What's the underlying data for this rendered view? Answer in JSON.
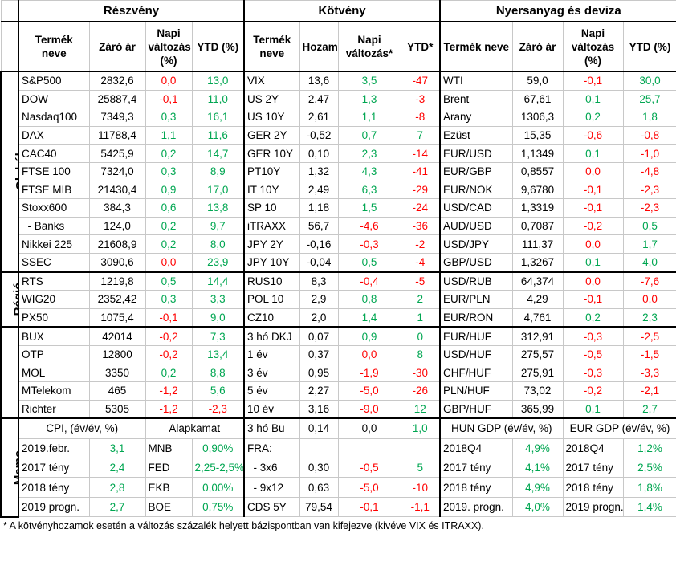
{
  "sections": [
    {
      "title": "Részvény",
      "headers": [
        "Termék neve",
        "Záró ár",
        "Napi változás (%)",
        "YTD (%)"
      ]
    },
    {
      "title": "Kötvény",
      "headers": [
        "Termék neve",
        "Hozam",
        "Napi változás*",
        "YTD*"
      ]
    },
    {
      "title": "Nyersanyag és deviza",
      "headers": [
        "Termék neve",
        "Záró ár",
        "Napi változás (%)",
        "YTD (%)"
      ]
    }
  ],
  "groups": [
    {
      "label": "Globál",
      "rows": [
        [
          "S&P500",
          "2832,6",
          "0,0",
          "13,0",
          "VIX",
          "13,6",
          "3,5",
          "-47",
          "WTI",
          "59,0",
          "-0,1",
          "30,0"
        ],
        [
          "DOW",
          "25887,4",
          "-0,1",
          "11,0",
          "US 2Y",
          "2,47",
          "1,3",
          "-3",
          "Brent",
          "67,61",
          "0,1",
          "25,7"
        ],
        [
          "Nasdaq100",
          "7349,3",
          "0,3",
          "16,1",
          "US 10Y",
          "2,61",
          "1,1",
          "-8",
          "Arany",
          "1306,3",
          "0,2",
          "1,8"
        ],
        [
          "DAX",
          "11788,4",
          "1,1",
          "11,6",
          "GER 2Y",
          "-0,52",
          "0,7",
          "7",
          "Ezüst",
          "15,35",
          "-0,6",
          "-0,8"
        ],
        [
          "CAC40",
          "5425,9",
          "0,2",
          "14,7",
          "GER 10Y",
          "0,10",
          "2,3",
          "-14",
          "EUR/USD",
          "1,1349",
          "0,1",
          "-1,0"
        ],
        [
          "FTSE 100",
          "7324,0",
          "0,3",
          "8,9",
          "PT10Y",
          "1,32",
          "4,3",
          "-41",
          "EUR/GBP",
          "0,8557",
          "0,0",
          "-4,8"
        ],
        [
          "FTSE MIB",
          "21430,4",
          "0,9",
          "17,0",
          "IT 10Y",
          "2,49",
          "6,3",
          "-29",
          "EUR/NOK",
          "9,6780",
          "-0,1",
          "-2,3"
        ],
        [
          "Stoxx600",
          "384,3",
          "0,6",
          "13,8",
          "SP 10",
          "1,18",
          "1,5",
          "-24",
          "USD/CAD",
          "1,3319",
          "-0,1",
          "-2,3"
        ],
        [
          "  - Banks",
          "124,0",
          "0,2",
          "9,7",
          "iTRAXX",
          "56,7",
          "-4,6",
          "-36",
          "AUD/USD",
          "0,7087",
          "-0,2",
          "0,5"
        ],
        [
          "Nikkei 225",
          "21608,9",
          "0,2",
          "8,0",
          "JPY 2Y",
          "-0,16",
          "-0,3",
          "-2",
          "USD/JPY",
          "111,37",
          "0,0",
          "1,7"
        ],
        [
          "SSEC",
          "3090,6",
          "0,0",
          "23,9",
          "JPY 10Y",
          "-0,04",
          "0,5",
          "-4",
          "GBP/USD",
          "1,3267",
          "0,1",
          "4,0"
        ]
      ]
    },
    {
      "label": "Régió",
      "rows": [
        [
          "RTS",
          "1219,8",
          "0,5",
          "14,4",
          "RUS10",
          "8,3",
          "-0,4",
          "-5",
          "USD/RUB",
          "64,374",
          "0,0",
          "-7,6"
        ],
        [
          "WIG20",
          "2352,42",
          "0,3",
          "3,3",
          "POL 10",
          "2,9",
          "0,8",
          "2",
          "EUR/PLN",
          "4,29",
          "-0,1",
          "0,0"
        ],
        [
          "PX50",
          "1075,4",
          "-0,1",
          "9,0",
          "CZ10",
          "2,0",
          "1,4",
          "1",
          "EUR/RON",
          "4,761",
          "0,2",
          "2,3"
        ]
      ]
    },
    {
      "label": "Magyar",
      "rows": [
        [
          "BUX",
          "42014",
          "-0,2",
          "7,3",
          "3 hó DKJ",
          "0,07",
          "0,9",
          "0",
          "EUR/HUF",
          "312,91",
          "-0,3",
          "-2,5"
        ],
        [
          "OTP",
          "12800",
          "-0,2",
          "13,4",
          "1 év",
          "0,37",
          "0,0",
          "8",
          "USD/HUF",
          "275,57",
          "-0,5",
          "-1,5"
        ],
        [
          "MOL",
          "3350",
          "0,2",
          "8,8",
          "3 év",
          "0,95",
          "-1,9",
          "-30",
          "CHF/HUF",
          "275,91",
          "-0,3",
          "-3,3"
        ],
        [
          "MTelekom",
          "465",
          "-1,2",
          "5,6",
          "5 év",
          "2,27",
          "-5,0",
          "-26",
          "PLN/HUF",
          "73,02",
          "-0,2",
          "-2,1"
        ],
        [
          "Richter",
          "5305",
          "-1,2",
          "-2,3",
          "10 év",
          "3,16",
          "-9,0",
          "12",
          "GBP/HUF",
          "365,99",
          "0,1",
          "2,7"
        ]
      ]
    }
  ],
  "memo": {
    "label": "Memo",
    "rows": [
      [
        [
          "CPI, (év/év, %)",
          "Alapkamat"
        ],
        [
          "3 hó Bu",
          "0,14",
          "0,0",
          "1,0"
        ],
        [
          "HUN GDP (év/év, %)",
          "EUR GDP (év/év, %)"
        ]
      ],
      [
        [
          "2019.febr.",
          "3,1",
          "MNB",
          "0,90%"
        ],
        [
          "FRA:"
        ],
        [
          "2018Q4",
          "4,9%",
          "2018Q4",
          "1,2%"
        ]
      ],
      [
        [
          "2017 tény",
          "2,4",
          "FED",
          "2,25-2,5%"
        ],
        [
          "  - 3x6",
          "0,30",
          "-0,5",
          "5"
        ],
        [
          "2017 tény",
          "4,1%",
          "2017 tény",
          "2,5%"
        ]
      ],
      [
        [
          "2018 tény",
          "2,8",
          "EKB",
          "0,00%"
        ],
        [
          "  - 9x12",
          "0,63",
          "-5,0",
          "-10"
        ],
        [
          "2018 tény",
          "4,9%",
          "2018 tény",
          "1,8%"
        ]
      ],
      [
        [
          "2019 progn.",
          "2,7",
          "BOE",
          "0,75%"
        ],
        [
          "CDS 5Y",
          "79,54",
          "-0,1",
          "-1,1"
        ],
        [
          "2019. progn.",
          "4,0%",
          "2019 progn.",
          "1,4%"
        ]
      ]
    ]
  },
  "footnote": "* A kötvényhozamok esetén a változás százalék helyett bázispontban van kifejezve (kivéve VIX és ITRAXX)."
}
